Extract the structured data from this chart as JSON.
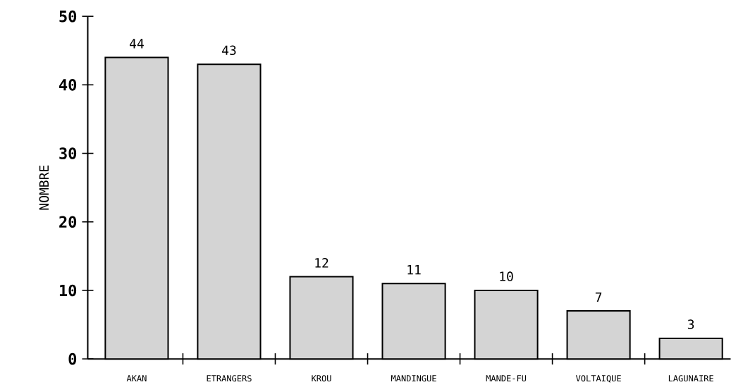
{
  "chart_data": {
    "type": "bar",
    "ylabel": "NOMBRE",
    "categories": [
      "AKAN",
      "ETRANGERS",
      "KROU",
      "MANDINGUE",
      "MANDE-FU",
      "VOLTAIQUE",
      "LAGUNAIRE"
    ],
    "values": [
      44,
      43,
      12,
      11,
      10,
      7,
      3
    ],
    "color": "#d4d4d4",
    "ylim": [
      0,
      50
    ],
    "yticks": [
      0,
      10,
      20,
      30,
      40,
      50
    ],
    "data_labels": true,
    "grid": false
  }
}
